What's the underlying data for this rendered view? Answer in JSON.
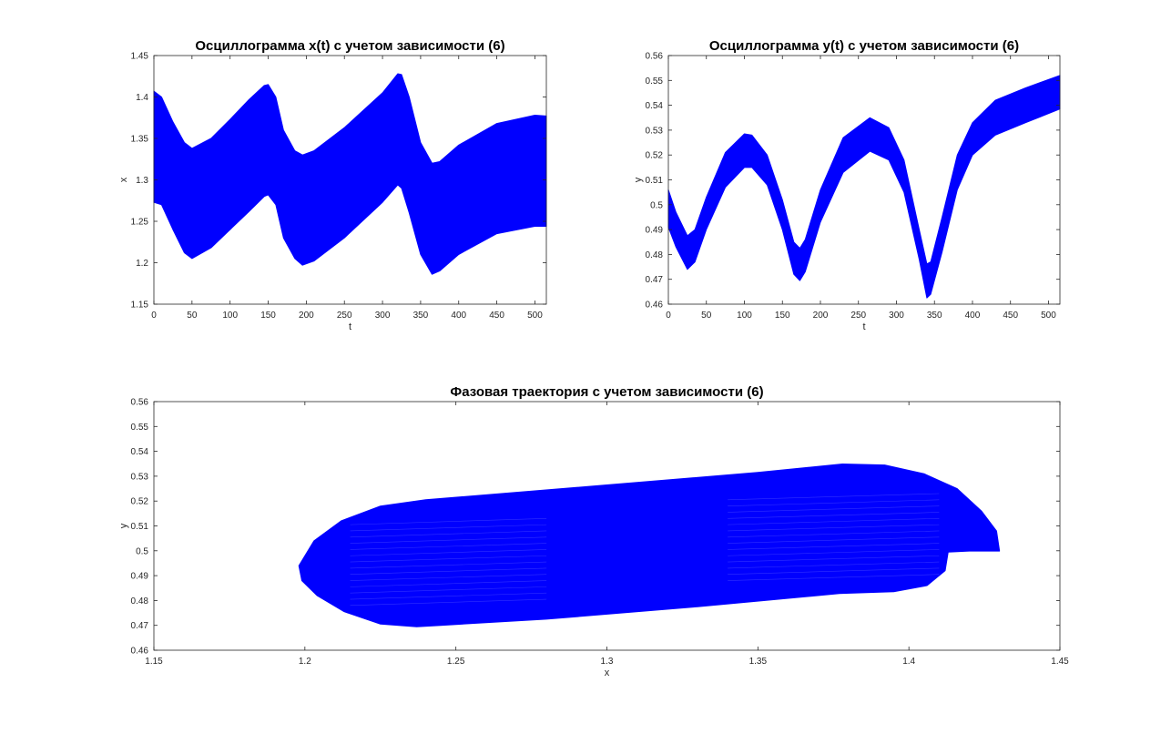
{
  "chart_data": [
    {
      "type": "area",
      "title": "Осциллограмма x(t) с учетом зависимости (6)",
      "xlabel": "t",
      "ylabel": "x",
      "xlim": [
        0,
        515
      ],
      "ylim": [
        1.15,
        1.45
      ],
      "xticks": [
        0,
        50,
        100,
        150,
        200,
        250,
        300,
        350,
        400,
        450,
        500
      ],
      "yticks": [
        1.15,
        1.2,
        1.25,
        1.3,
        1.35,
        1.4,
        1.45
      ],
      "grid": false,
      "color": "#0000ff",
      "envelope": {
        "t": [
          0,
          10,
          25,
          40,
          50,
          75,
          100,
          125,
          145,
          150,
          160,
          170,
          185,
          195,
          210,
          250,
          300,
          320,
          325,
          335,
          350,
          365,
          375,
          400,
          450,
          500,
          515
        ],
        "upper": [
          1.407,
          1.4,
          1.37,
          1.345,
          1.338,
          1.35,
          1.373,
          1.397,
          1.414,
          1.415,
          1.4,
          1.36,
          1.335,
          1.33,
          1.335,
          1.363,
          1.405,
          1.428,
          1.427,
          1.4,
          1.345,
          1.32,
          1.322,
          1.342,
          1.368,
          1.378,
          1.377
        ],
        "lower": [
          1.273,
          1.27,
          1.24,
          1.212,
          1.205,
          1.218,
          1.24,
          1.262,
          1.28,
          1.282,
          1.27,
          1.23,
          1.205,
          1.197,
          1.202,
          1.23,
          1.273,
          1.294,
          1.29,
          1.26,
          1.21,
          1.186,
          1.19,
          1.21,
          1.235,
          1.244,
          1.244
        ]
      }
    },
    {
      "type": "area",
      "title": "Осциллограмма y(t) с учетом зависимости (6)",
      "xlabel": "t",
      "ylabel": "y",
      "xlim": [
        0,
        515
      ],
      "ylim": [
        0.46,
        0.56
      ],
      "xticks": [
        0,
        50,
        100,
        150,
        200,
        250,
        300,
        350,
        400,
        450,
        500
      ],
      "yticks": [
        0.46,
        0.47,
        0.48,
        0.49,
        0.5,
        0.51,
        0.52,
        0.53,
        0.54,
        0.55,
        0.56
      ],
      "grid": false,
      "color": "#0000ff",
      "envelope": {
        "t": [
          0,
          10,
          25,
          35,
          50,
          75,
          100,
          110,
          130,
          150,
          165,
          173,
          180,
          200,
          230,
          265,
          290,
          310,
          330,
          340,
          345,
          360,
          380,
          400,
          430,
          470,
          515
        ],
        "upper": [
          0.506,
          0.497,
          0.4875,
          0.49,
          0.503,
          0.521,
          0.5285,
          0.528,
          0.52,
          0.502,
          0.485,
          0.4825,
          0.486,
          0.506,
          0.527,
          0.535,
          0.531,
          0.518,
          0.49,
          0.4762,
          0.477,
          0.495,
          0.52,
          0.533,
          0.542,
          0.547,
          0.552
        ],
        "lower": [
          0.491,
          0.483,
          0.474,
          0.477,
          0.49,
          0.507,
          0.515,
          0.515,
          0.508,
          0.49,
          0.472,
          0.4695,
          0.473,
          0.493,
          0.513,
          0.5215,
          0.518,
          0.505,
          0.478,
          0.4625,
          0.464,
          0.481,
          0.506,
          0.52,
          0.528,
          0.533,
          0.5385
        ]
      }
    },
    {
      "type": "line",
      "title": "Фазовая траектория с учетом зависимости (6)",
      "xlabel": "x",
      "ylabel": "y",
      "xlim": [
        1.15,
        1.45
      ],
      "ylim": [
        0.46,
        0.56
      ],
      "xticks": [
        1.15,
        1.2,
        1.25,
        1.3,
        1.35,
        1.4,
        1.45
      ],
      "yticks": [
        0.46,
        0.47,
        0.48,
        0.49,
        0.5,
        0.51,
        0.52,
        0.53,
        0.54,
        0.55,
        0.56
      ],
      "grid": false,
      "color": "#0000ff",
      "region_outline": {
        "x": [
          1.198,
          1.203,
          1.212,
          1.225,
          1.24,
          1.255,
          1.3,
          1.35,
          1.378,
          1.392,
          1.405,
          1.416,
          1.424,
          1.429,
          1.43,
          1.42,
          1.413,
          1.412,
          1.406,
          1.395,
          1.377,
          1.33,
          1.28,
          1.245,
          1.237,
          1.225,
          1.213,
          1.204,
          1.199
        ],
        "y": [
          0.494,
          0.504,
          0.512,
          0.518,
          0.5205,
          0.522,
          0.5265,
          0.5315,
          0.5349,
          0.5345,
          0.531,
          0.525,
          0.516,
          0.508,
          0.4999,
          0.4999,
          0.4995,
          0.492,
          0.486,
          0.4835,
          0.4828,
          0.4775,
          0.4725,
          0.47,
          0.4694,
          0.4705,
          0.4755,
          0.482,
          0.488
        ]
      }
    }
  ]
}
